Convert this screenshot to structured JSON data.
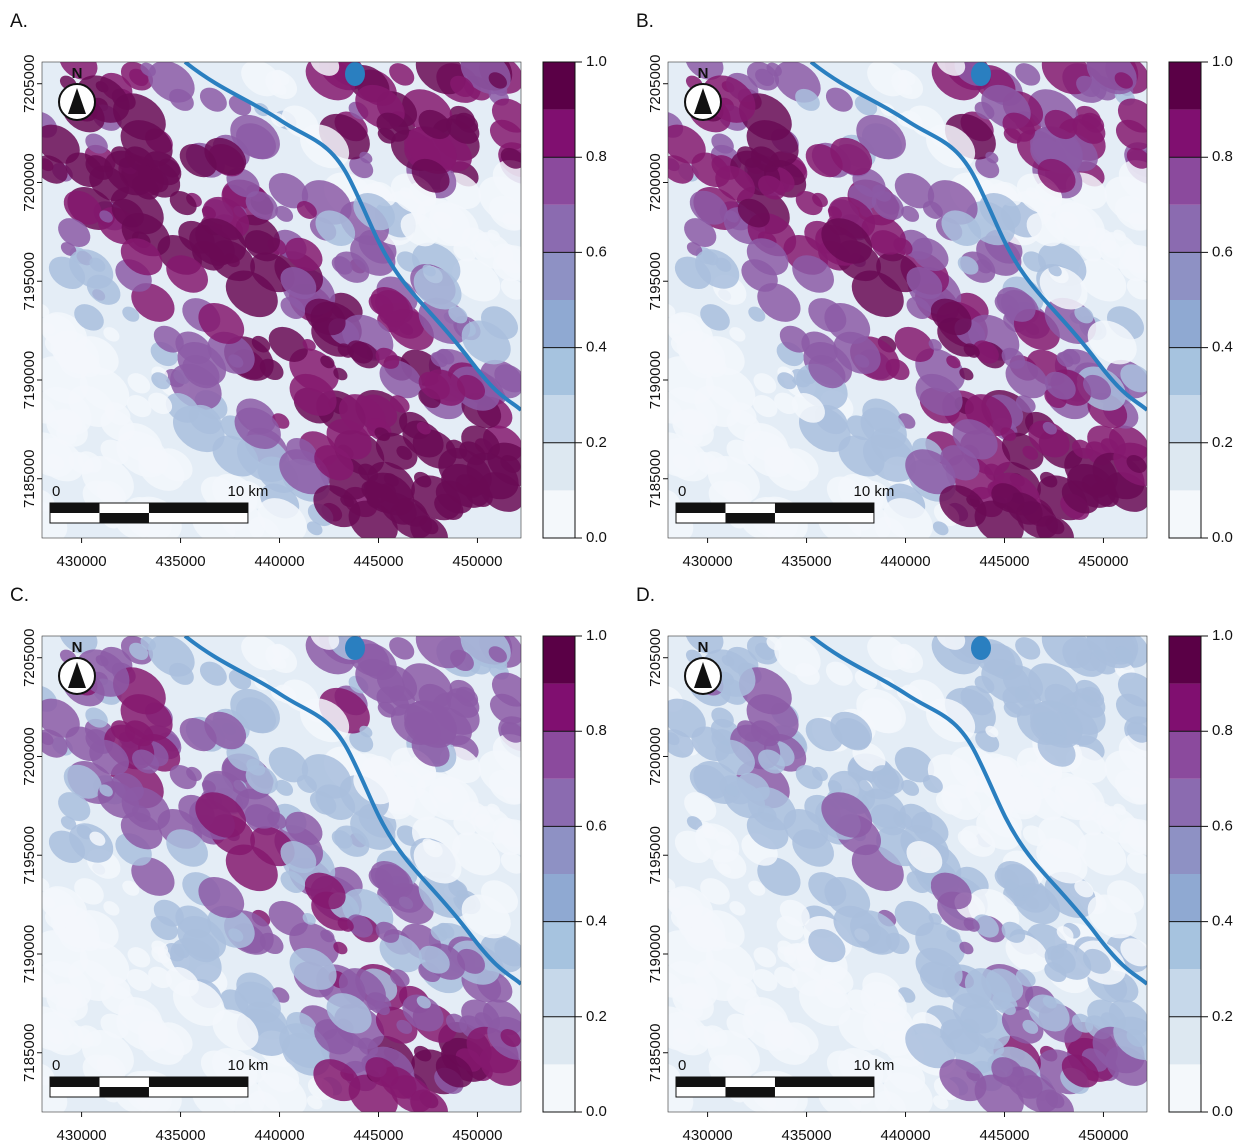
{
  "panels": [
    {
      "label": "A."
    },
    {
      "label": "B."
    },
    {
      "label": "C."
    },
    {
      "label": "D."
    }
  ],
  "x_axis": {
    "lim": [
      428000,
      452200
    ],
    "ticks": [
      430000,
      435000,
      440000,
      445000,
      450000
    ]
  },
  "y_axis": {
    "lim": [
      7182000,
      7206100
    ],
    "ticks": [
      7185000,
      7190000,
      7195000,
      7200000,
      7205000
    ]
  },
  "colorbar": {
    "lim": [
      0,
      1
    ],
    "ticks": [
      {
        "value": 0,
        "label": "0.0"
      },
      {
        "value": 0.2,
        "label": "0.2"
      },
      {
        "value": 0.4,
        "label": "0.4"
      },
      {
        "value": 0.6,
        "label": "0.6"
      },
      {
        "value": 0.8,
        "label": "0.8"
      },
      {
        "value": 1,
        "label": "1.0"
      }
    ],
    "bins": [
      0,
      0.1,
      0.2,
      0.3,
      0.4,
      0.5,
      0.6,
      0.7,
      0.8,
      0.9,
      1
    ],
    "colors": [
      "#f4f8fb",
      "#dde8f1",
      "#c6d8ea",
      "#a6c3df",
      "#8fa9d2",
      "#8e91c4",
      "#8b6bb0",
      "#8b4a9d",
      "#800f70",
      "#5a0046"
    ]
  },
  "scale_bar": {
    "start_label": "0",
    "end_label": "10 km",
    "divisions_km": [
      0,
      2.5,
      5,
      10
    ]
  },
  "north_label": "N"
}
